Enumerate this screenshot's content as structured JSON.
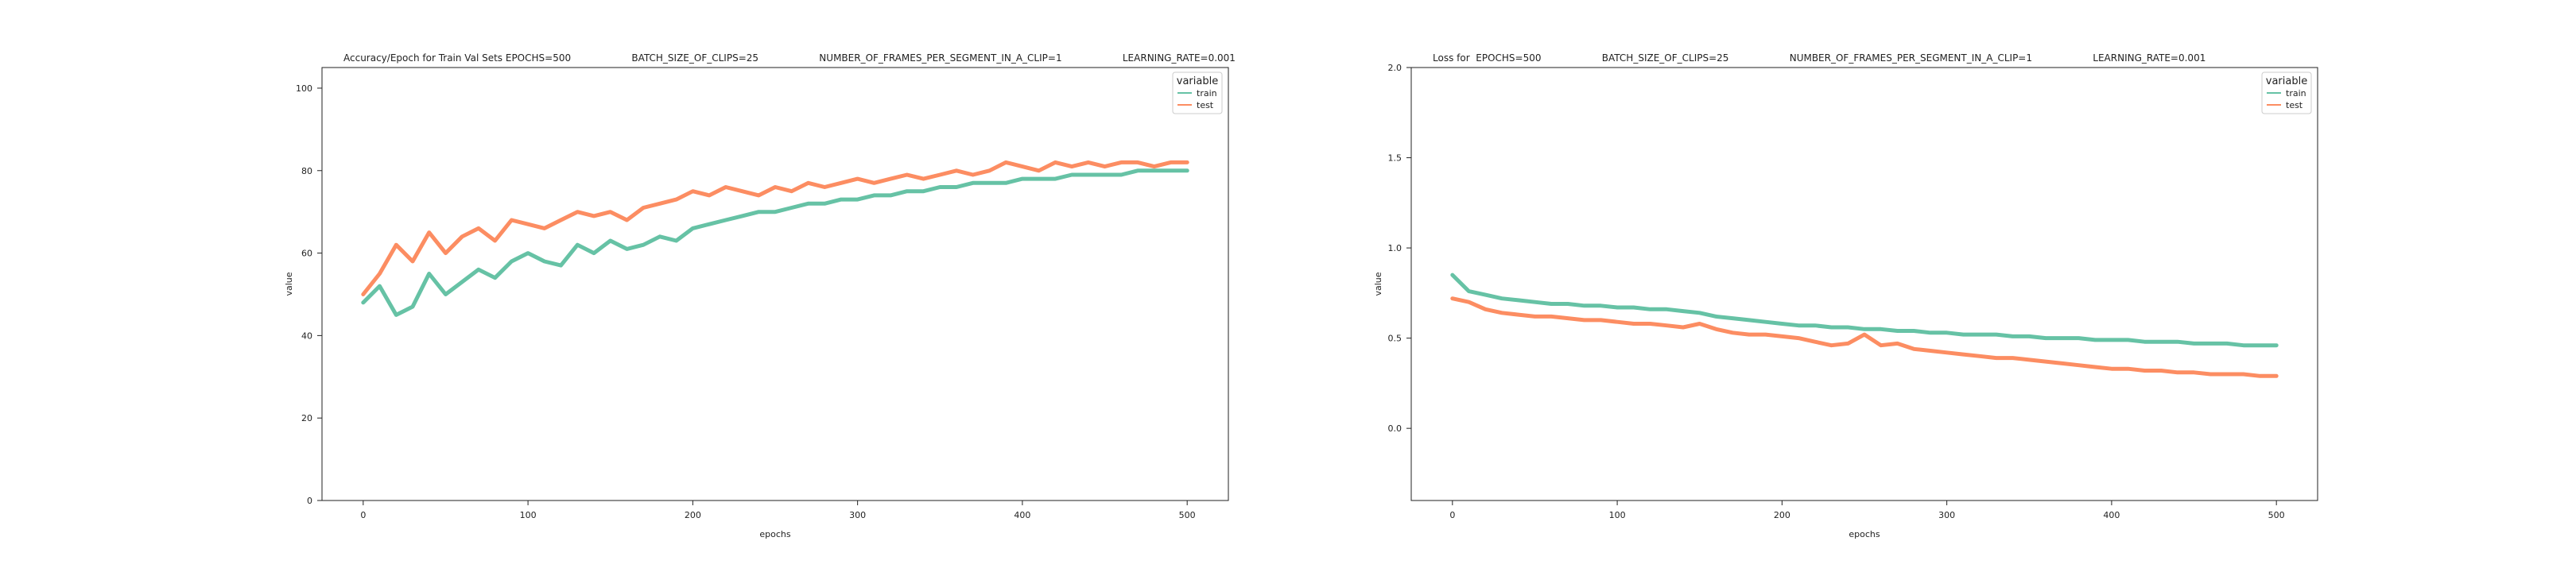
{
  "figure": {
    "background": "#ffffff"
  },
  "chart_data": [
    {
      "type": "line",
      "title": "Accuracy/Epoch for Train Val Sets EPOCHS=500                    BATCH_SIZE_OF_CLIPS=25                    NUMBER_OF_FRAMES_PER_SEGMENT_IN_A_CLIP=1                    LEARNING_RATE=0.001",
      "xlabel": "epochs",
      "ylabel": "value",
      "xlim": [
        -25,
        525
      ],
      "ylim": [
        0,
        105
      ],
      "xticks": [
        0,
        100,
        200,
        300,
        400,
        500
      ],
      "yticks": [
        0,
        20,
        40,
        60,
        80,
        100
      ],
      "legend": {
        "title": "variable",
        "placement": "top-right"
      },
      "series": [
        {
          "name": "train",
          "color": "#66c2a5",
          "x": [
            0,
            10,
            20,
            30,
            40,
            50,
            60,
            70,
            80,
            90,
            100,
            110,
            120,
            130,
            140,
            150,
            160,
            170,
            180,
            190,
            200,
            210,
            220,
            230,
            240,
            250,
            260,
            270,
            280,
            290,
            300,
            310,
            320,
            330,
            340,
            350,
            360,
            370,
            380,
            390,
            400,
            410,
            420,
            430,
            440,
            450,
            460,
            470,
            480,
            490,
            500
          ],
          "values": [
            48,
            52,
            45,
            47,
            55,
            50,
            53,
            56,
            54,
            58,
            60,
            58,
            57,
            62,
            60,
            63,
            61,
            62,
            64,
            63,
            66,
            67,
            68,
            69,
            70,
            70,
            71,
            72,
            72,
            73,
            73,
            74,
            74,
            75,
            75,
            76,
            76,
            77,
            77,
            77,
            78,
            78,
            78,
            79,
            79,
            79,
            79,
            80,
            80,
            80,
            80
          ]
        },
        {
          "name": "test",
          "color": "#fc8d62",
          "x": [
            0,
            10,
            20,
            30,
            40,
            50,
            60,
            70,
            80,
            90,
            100,
            110,
            120,
            130,
            140,
            150,
            160,
            170,
            180,
            190,
            200,
            210,
            220,
            230,
            240,
            250,
            260,
            270,
            280,
            290,
            300,
            310,
            320,
            330,
            340,
            350,
            360,
            370,
            380,
            390,
            400,
            410,
            420,
            430,
            440,
            450,
            460,
            470,
            480,
            490,
            500
          ],
          "values": [
            50,
            55,
            62,
            58,
            65,
            60,
            64,
            66,
            63,
            68,
            67,
            66,
            68,
            70,
            69,
            70,
            68,
            71,
            72,
            73,
            75,
            74,
            76,
            75,
            74,
            76,
            75,
            77,
            76,
            77,
            78,
            77,
            78,
            79,
            78,
            79,
            80,
            79,
            80,
            82,
            81,
            80,
            82,
            81,
            82,
            81,
            82,
            82,
            81,
            82,
            82
          ]
        }
      ]
    },
    {
      "type": "line",
      "title": "Loss for  EPOCHS=500                    BATCH_SIZE_OF_CLIPS=25                    NUMBER_OF_FRAMES_PER_SEGMENT_IN_A_CLIP=1                    LEARNING_RATE=0.001",
      "xlabel": "epochs",
      "ylabel": "value",
      "xlim": [
        -25,
        525
      ],
      "ylim": [
        -0.4,
        2.0
      ],
      "xticks": [
        0,
        100,
        200,
        300,
        400,
        500
      ],
      "yticks": [
        0.0,
        0.5,
        1.0,
        1.5,
        2.0
      ],
      "yticklabels": [
        "0.0",
        "0.5",
        "1.0",
        "1.5",
        "2.0"
      ],
      "legend": {
        "title": "variable",
        "placement": "top-right"
      },
      "series": [
        {
          "name": "train",
          "color": "#66c2a5",
          "x": [
            0,
            10,
            20,
            30,
            40,
            50,
            60,
            70,
            80,
            90,
            100,
            110,
            120,
            130,
            140,
            150,
            160,
            170,
            180,
            190,
            200,
            210,
            220,
            230,
            240,
            250,
            260,
            270,
            280,
            290,
            300,
            310,
            320,
            330,
            340,
            350,
            360,
            370,
            380,
            390,
            400,
            410,
            420,
            430,
            440,
            450,
            460,
            470,
            480,
            490,
            500
          ],
          "values": [
            0.85,
            0.76,
            0.74,
            0.72,
            0.71,
            0.7,
            0.69,
            0.69,
            0.68,
            0.68,
            0.67,
            0.67,
            0.66,
            0.66,
            0.65,
            0.64,
            0.62,
            0.61,
            0.6,
            0.59,
            0.58,
            0.57,
            0.57,
            0.56,
            0.56,
            0.55,
            0.55,
            0.54,
            0.54,
            0.53,
            0.53,
            0.52,
            0.52,
            0.52,
            0.51,
            0.51,
            0.5,
            0.5,
            0.5,
            0.49,
            0.49,
            0.49,
            0.48,
            0.48,
            0.48,
            0.47,
            0.47,
            0.47,
            0.46,
            0.46,
            0.46
          ]
        },
        {
          "name": "test",
          "color": "#fc8d62",
          "x": [
            0,
            10,
            20,
            30,
            40,
            50,
            60,
            70,
            80,
            90,
            100,
            110,
            120,
            130,
            140,
            150,
            160,
            170,
            180,
            190,
            200,
            210,
            220,
            230,
            240,
            250,
            260,
            270,
            280,
            290,
            300,
            310,
            320,
            330,
            340,
            350,
            360,
            370,
            380,
            390,
            400,
            410,
            420,
            430,
            440,
            450,
            460,
            470,
            480,
            490,
            500
          ],
          "values": [
            0.72,
            0.7,
            0.66,
            0.64,
            0.63,
            0.62,
            0.62,
            0.61,
            0.6,
            0.6,
            0.59,
            0.58,
            0.58,
            0.57,
            0.56,
            0.58,
            0.55,
            0.53,
            0.52,
            0.52,
            0.51,
            0.5,
            0.48,
            0.46,
            0.47,
            0.52,
            0.46,
            0.47,
            0.44,
            0.43,
            0.42,
            0.41,
            0.4,
            0.39,
            0.39,
            0.38,
            0.37,
            0.36,
            0.35,
            0.34,
            0.33,
            0.33,
            0.32,
            0.32,
            0.31,
            0.31,
            0.3,
            0.3,
            0.3,
            0.29,
            0.29
          ]
        }
      ]
    }
  ]
}
